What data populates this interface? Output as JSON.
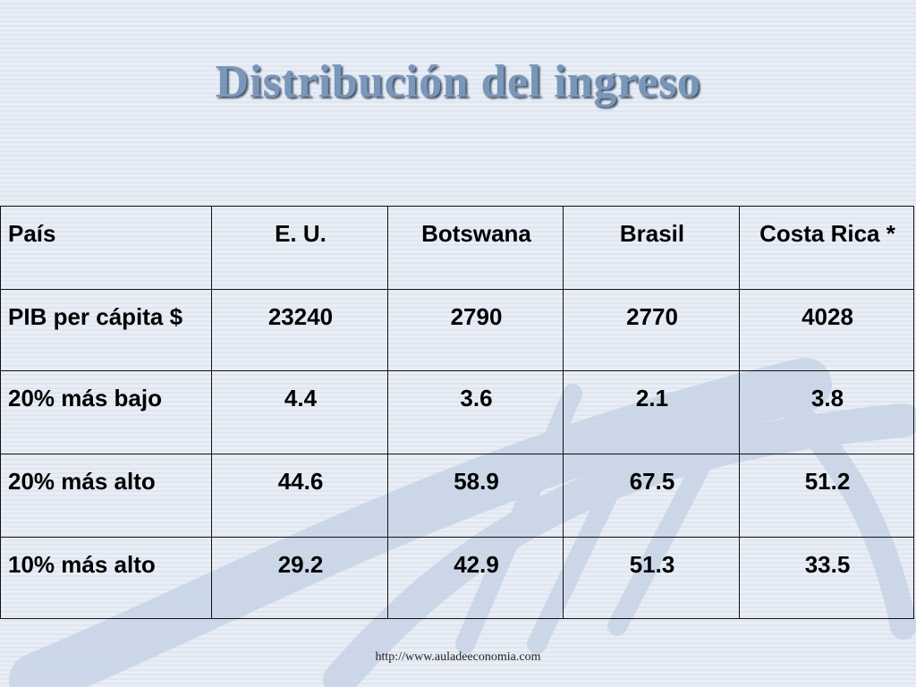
{
  "slide": {
    "title": "Distribución del ingreso",
    "footer": "http://www.auladeeconomia.com"
  },
  "table": {
    "headers": [
      "País",
      "E. U.",
      "Botswana",
      "Brasil",
      "Costa Rica *"
    ],
    "rows": [
      [
        "PIB per cápita $",
        "23240",
        "2790",
        "2770",
        "4028"
      ],
      [
        "20% más bajo",
        "4.4",
        "3.6",
        "2.1",
        "3.8"
      ],
      [
        "20% más alto",
        "44.6",
        "58.9",
        "67.5",
        "51.2"
      ],
      [
        "10% más alto",
        "29.2",
        "42.9",
        "51.3",
        "33.5"
      ]
    ]
  },
  "colors": {
    "background": "#e6ecf5",
    "title": "#7a96b8",
    "title_shadow": "#3d4f66",
    "border": "#111111"
  }
}
